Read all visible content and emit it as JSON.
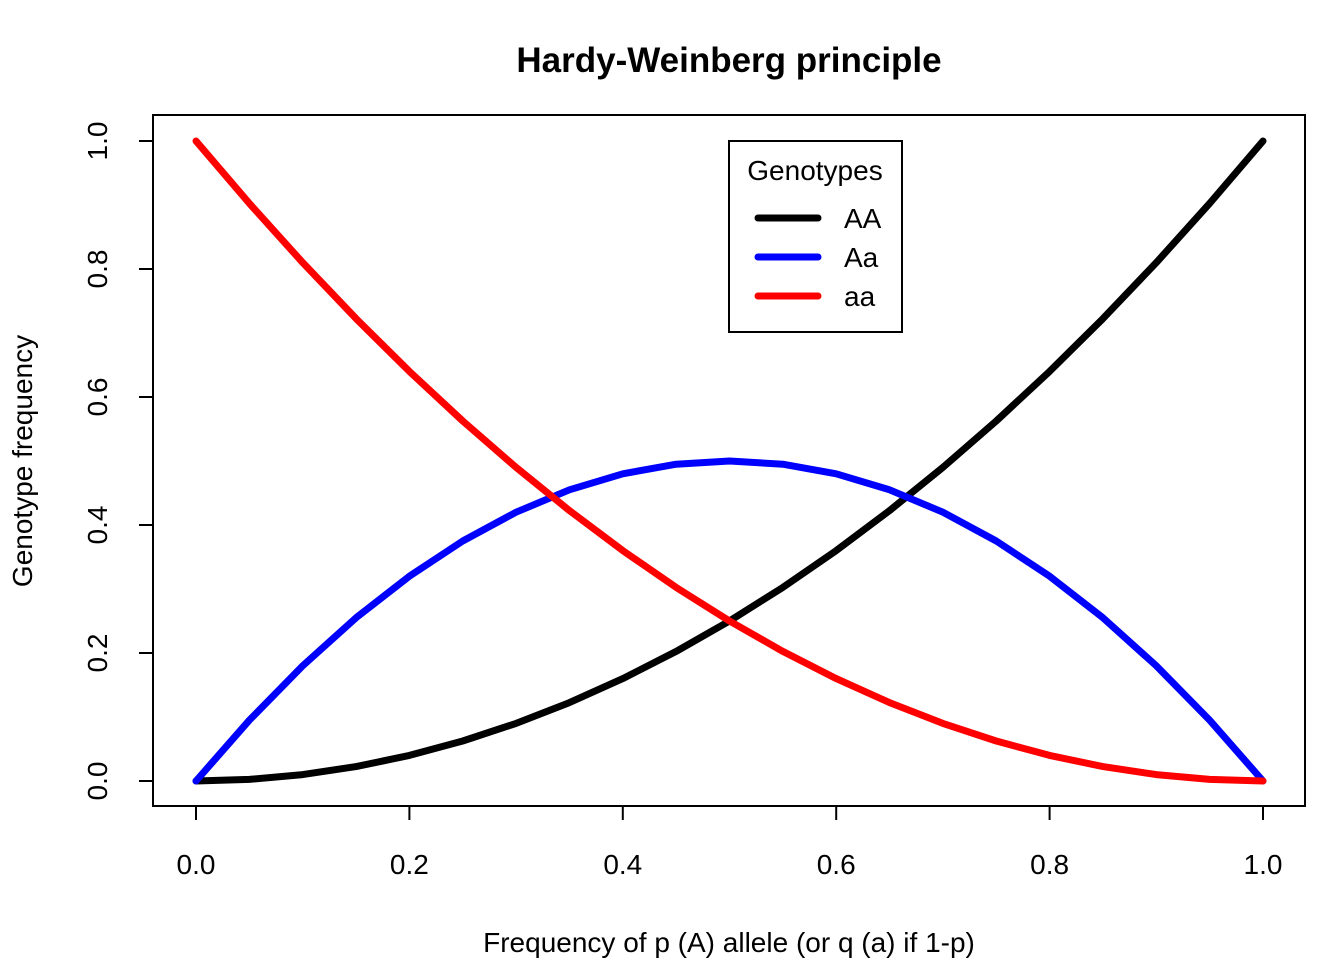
{
  "chart_data": {
    "type": "line",
    "title": "Hardy-Weinberg principle",
    "xlabel": "Frequency of p (A) allele (or q (a) if 1-p)",
    "ylabel": "Genotype frequency",
    "xlim": [
      0,
      1
    ],
    "ylim": [
      0,
      1
    ],
    "xticks": [
      "0.0",
      "0.2",
      "0.4",
      "0.6",
      "0.8",
      "1.0"
    ],
    "yticks": [
      "0.0",
      "0.2",
      "0.4",
      "0.6",
      "0.8",
      "1.0"
    ],
    "grid": false,
    "legend": {
      "title": "Genotypes",
      "placement": "top-center"
    },
    "x": [
      0.0,
      0.05,
      0.1,
      0.15,
      0.2,
      0.25,
      0.3,
      0.35,
      0.4,
      0.45,
      0.5,
      0.55,
      0.6,
      0.65,
      0.7,
      0.75,
      0.8,
      0.85,
      0.9,
      0.95,
      1.0
    ],
    "series": [
      {
        "name": "AA",
        "color": "#000000",
        "values": [
          0.0,
          0.0025,
          0.01,
          0.0225,
          0.04,
          0.0625,
          0.09,
          0.1225,
          0.16,
          0.2025,
          0.25,
          0.3025,
          0.36,
          0.4225,
          0.49,
          0.5625,
          0.64,
          0.7225,
          0.81,
          0.9025,
          1.0
        ]
      },
      {
        "name": "Aa",
        "color": "#0000ff",
        "values": [
          0.0,
          0.095,
          0.18,
          0.255,
          0.32,
          0.375,
          0.42,
          0.455,
          0.48,
          0.495,
          0.5,
          0.495,
          0.48,
          0.455,
          0.42,
          0.375,
          0.32,
          0.255,
          0.18,
          0.095,
          0.0
        ]
      },
      {
        "name": "aa",
        "color": "#ff0000",
        "values": [
          1.0,
          0.9025,
          0.81,
          0.7225,
          0.64,
          0.5625,
          0.49,
          0.4225,
          0.36,
          0.3025,
          0.25,
          0.2025,
          0.16,
          0.1225,
          0.09,
          0.0625,
          0.04,
          0.0225,
          0.01,
          0.0025,
          0.0
        ]
      }
    ]
  }
}
